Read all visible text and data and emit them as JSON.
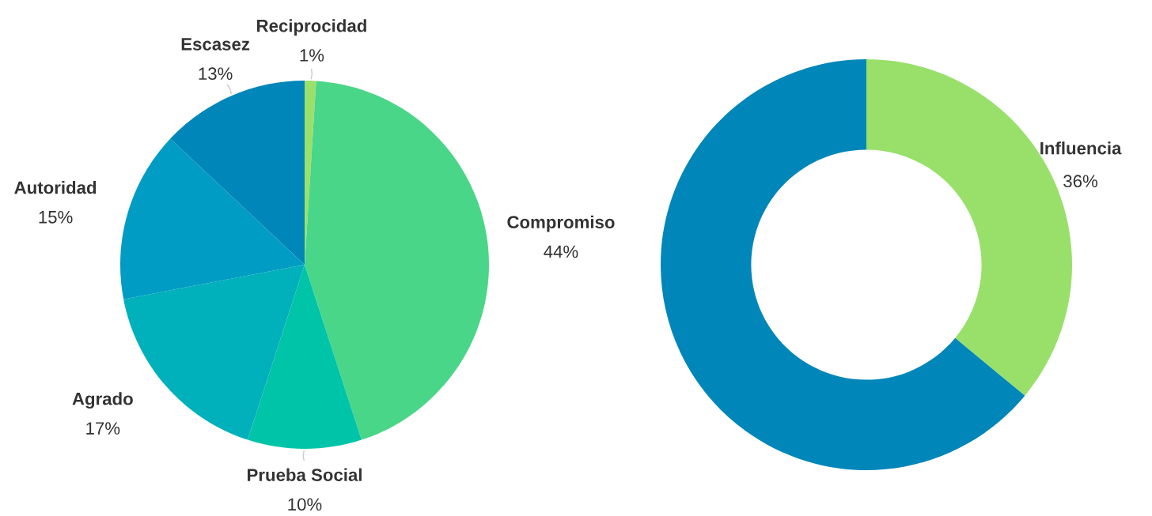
{
  "chart_data": [
    {
      "type": "pie",
      "categories": [
        "Reciprocidad",
        "Compromiso",
        "Prueba Social",
        "Agrado",
        "Autoridad",
        "Escasez"
      ],
      "values": [
        1,
        44,
        10,
        17,
        15,
        13
      ],
      "value_labels": [
        "1%",
        "44%",
        "10%",
        "17%",
        "15%",
        "13%"
      ],
      "colors": [
        "#9be06a",
        "#4ad688",
        "#00c4a8",
        "#00b0bb",
        "#009cc3",
        "#0086b8"
      ]
    },
    {
      "type": "donut",
      "categories": [
        "Influencia",
        null
      ],
      "values": [
        36,
        64
      ],
      "value_labels": [
        "36%",
        null
      ],
      "colors": [
        "#98e06a",
        "#0086b8"
      ]
    }
  ]
}
